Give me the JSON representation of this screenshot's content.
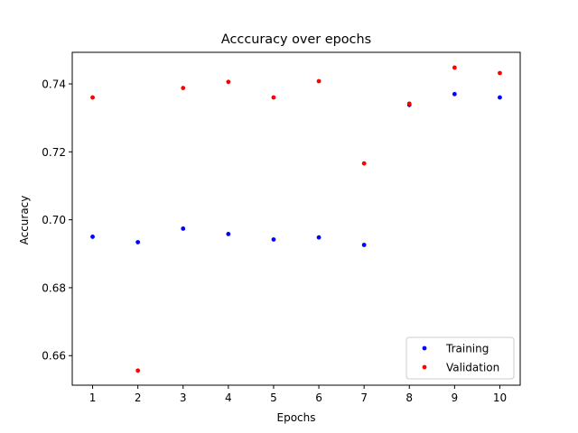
{
  "chart_data": {
    "type": "scatter",
    "title": "Acccuracy over epochs",
    "xlabel": "Epochs",
    "ylabel": "Accuracy",
    "x": [
      1,
      2,
      3,
      4,
      5,
      6,
      7,
      8,
      9,
      10
    ],
    "xticks": [
      "1",
      "2",
      "3",
      "4",
      "5",
      "6",
      "7",
      "8",
      "9",
      "10"
    ],
    "yticks": [
      "0.66",
      "0.68",
      "0.70",
      "0.72",
      "0.74"
    ],
    "ytick_values": [
      0.66,
      0.68,
      0.7,
      0.72,
      0.74
    ],
    "xlim": [
      0.55,
      10.45
    ],
    "ylim": [
      0.6513,
      0.7493
    ],
    "grid": false,
    "legend_position": "lower right",
    "series": [
      {
        "name": "Training",
        "color": "#0000ff",
        "values": [
          0.695,
          0.6934,
          0.6974,
          0.6958,
          0.6942,
          0.6948,
          0.6926,
          0.7338,
          0.737,
          0.736
        ]
      },
      {
        "name": "Validation",
        "color": "#ff0000",
        "values": [
          0.736,
          0.6556,
          0.7388,
          0.7406,
          0.736,
          0.7408,
          0.7166,
          0.7342,
          0.7448,
          0.7432
        ]
      }
    ]
  }
}
